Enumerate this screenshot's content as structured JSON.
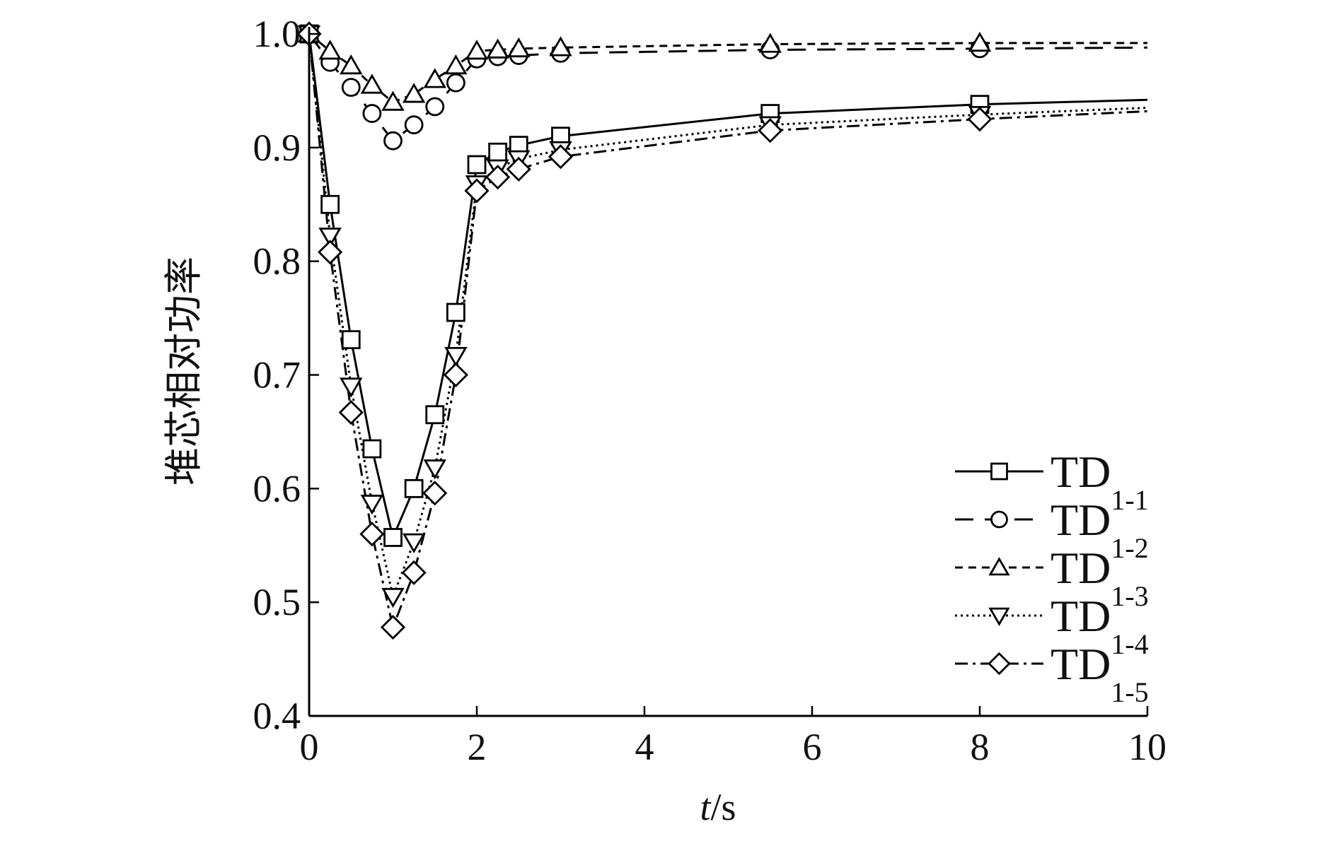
{
  "chart_data": {
    "type": "line",
    "xlabel_italic": "t",
    "xlabel_rest": "/s",
    "ylabel": "堆芯相对功率",
    "xlim": [
      0,
      10
    ],
    "ylim": [
      0.4,
      1.0
    ],
    "xticks": [
      "0",
      "2",
      "4",
      "6",
      "8",
      "10"
    ],
    "yticks": [
      "0.4",
      "0.5",
      "0.6",
      "0.7",
      "0.8",
      "0.9",
      "1.0"
    ],
    "legend_position": "bottom-right",
    "grid": false,
    "series": [
      {
        "name_main": "TD",
        "name_sub": "1-1",
        "marker": "square",
        "dash": "solid",
        "color": "#000000",
        "x": [
          0,
          0.25,
          0.5,
          0.75,
          1.0,
          1.25,
          1.5,
          1.75,
          2.0,
          2.25,
          2.5,
          3.0,
          5.5,
          8.0,
          10.0
        ],
        "y": [
          1.0,
          0.85,
          0.731,
          0.635,
          0.557,
          0.6,
          0.665,
          0.755,
          0.885,
          0.896,
          0.902,
          0.91,
          0.93,
          0.938,
          0.942
        ]
      },
      {
        "name_main": "TD",
        "name_sub": "1-2",
        "marker": "circle",
        "dash": "longdash",
        "color": "#000000",
        "x": [
          0,
          0.25,
          0.5,
          0.75,
          1.0,
          1.25,
          1.5,
          1.75,
          2.0,
          2.25,
          2.5,
          3.0,
          5.5,
          8.0,
          10.0
        ],
        "y": [
          1.0,
          0.975,
          0.953,
          0.93,
          0.906,
          0.92,
          0.936,
          0.957,
          0.978,
          0.98,
          0.981,
          0.983,
          0.986,
          0.987,
          0.988
        ]
      },
      {
        "name_main": "TD",
        "name_sub": "1-3",
        "marker": "triangle-up",
        "dash": "shortdash",
        "color": "#000000",
        "x": [
          0,
          0.25,
          0.5,
          0.75,
          1.0,
          1.25,
          1.5,
          1.75,
          2.0,
          2.25,
          2.5,
          3.0,
          5.5,
          8.0,
          10.0
        ],
        "y": [
          1.0,
          0.985,
          0.972,
          0.955,
          0.94,
          0.947,
          0.96,
          0.972,
          0.985,
          0.986,
          0.987,
          0.988,
          0.991,
          0.992,
          0.992
        ]
      },
      {
        "name_main": "TD",
        "name_sub": "1-4",
        "marker": "triangle-down",
        "dash": "dotted",
        "color": "#000000",
        "x": [
          0,
          0.25,
          0.5,
          0.75,
          1.0,
          1.25,
          1.5,
          1.75,
          2.0,
          2.25,
          2.5,
          3.0,
          5.5,
          8.0,
          10.0
        ],
        "y": [
          1.0,
          0.822,
          0.69,
          0.587,
          0.505,
          0.553,
          0.618,
          0.717,
          0.868,
          0.882,
          0.89,
          0.898,
          0.92,
          0.929,
          0.935
        ]
      },
      {
        "name_main": "TD",
        "name_sub": "1-5",
        "marker": "diamond",
        "dash": "dashdot",
        "color": "#000000",
        "x": [
          0,
          0.25,
          0.5,
          0.75,
          1.0,
          1.25,
          1.5,
          1.75,
          2.0,
          2.25,
          2.5,
          3.0,
          5.5,
          8.0,
          10.0
        ],
        "y": [
          1.0,
          0.808,
          0.667,
          0.56,
          0.478,
          0.526,
          0.596,
          0.7,
          0.862,
          0.874,
          0.881,
          0.892,
          0.915,
          0.925,
          0.932
        ]
      }
    ]
  }
}
